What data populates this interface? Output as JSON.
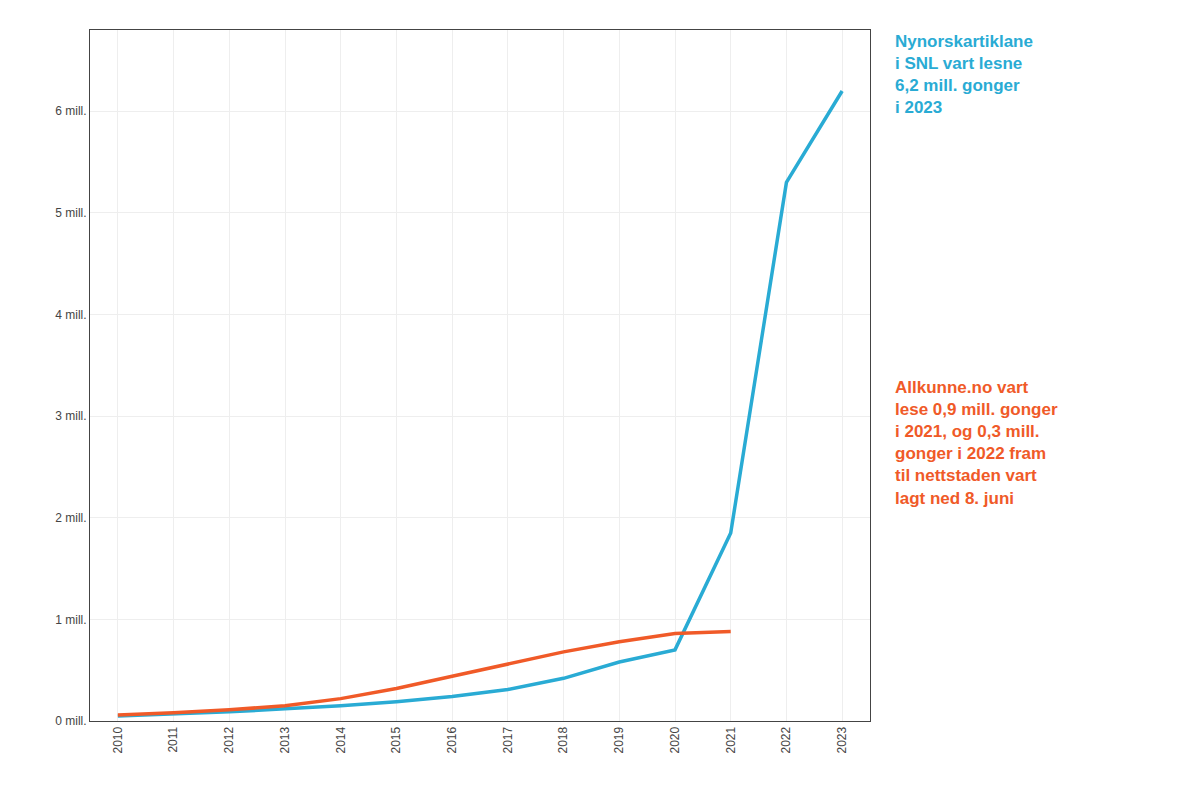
{
  "chart_data": {
    "type": "line",
    "series": [
      {
        "color": "#29ABD4",
        "x": [
          2010,
          2011,
          2012,
          2013,
          2014,
          2015,
          2016,
          2017,
          2018,
          2019,
          2020,
          2021,
          2022,
          2023
        ],
        "values": [
          0.05,
          0.07,
          0.09,
          0.12,
          0.15,
          0.19,
          0.24,
          0.31,
          0.42,
          0.58,
          0.7,
          1.85,
          5.3,
          6.2
        ]
      },
      {
        "color": "#F05A28",
        "x": [
          2010,
          2011,
          2012,
          2013,
          2014,
          2015,
          2016,
          2017,
          2018,
          2019,
          2020,
          2021
        ],
        "values": [
          0.06,
          0.08,
          0.11,
          0.15,
          0.22,
          0.32,
          0.44,
          0.56,
          0.68,
          0.78,
          0.86,
          0.88
        ]
      }
    ],
    "xlim": [
      2009.5,
      2023.5
    ],
    "xticks": [
      2010,
      2011,
      2012,
      2013,
      2014,
      2015,
      2016,
      2017,
      2018,
      2019,
      2020,
      2021,
      2022,
      2023
    ],
    "ylim": [
      0,
      6.8
    ],
    "yticks": [
      {
        "value": 0,
        "label": "0 mill."
      },
      {
        "value": 1,
        "label": "1 mill."
      },
      {
        "value": 2,
        "label": "2 mill."
      },
      {
        "value": 3,
        "label": "3 mill."
      },
      {
        "value": 4,
        "label": "4 mill."
      },
      {
        "value": 5,
        "label": "5 mill."
      },
      {
        "value": 6,
        "label": "6 mill."
      }
    ],
    "grid": true,
    "annotations": [
      {
        "text": "Nynorskartiklane\ni SNL vart lesne\n6,2 mill. gonger\ni 2023",
        "color": "#29ABD4"
      },
      {
        "text": "Allkunne.no vart\nlese 0,9 mill. gonger\ni 2021, og 0,3 mill.\ngonger i 2022 fram\ntil nettstaden vart\nlagt ned 8. juni",
        "color": "#F05A28"
      }
    ]
  }
}
